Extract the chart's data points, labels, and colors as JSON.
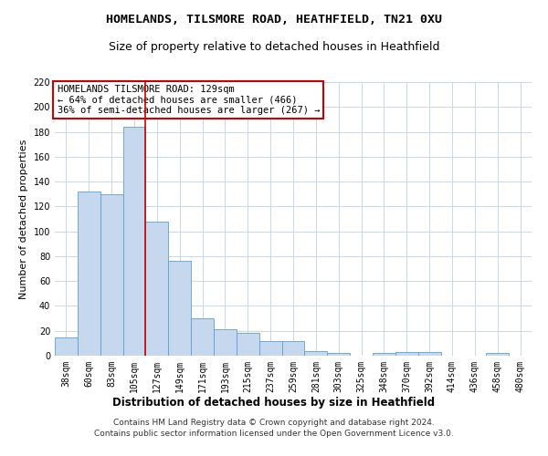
{
  "title1": "HOMELANDS, TILSMORE ROAD, HEATHFIELD, TN21 0XU",
  "title2": "Size of property relative to detached houses in Heathfield",
  "xlabel": "Distribution of detached houses by size in Heathfield",
  "ylabel": "Number of detached properties",
  "categories": [
    "38sqm",
    "60sqm",
    "83sqm",
    "105sqm",
    "127sqm",
    "149sqm",
    "171sqm",
    "193sqm",
    "215sqm",
    "237sqm",
    "259sqm",
    "281sqm",
    "303sqm",
    "325sqm",
    "348sqm",
    "370sqm",
    "392sqm",
    "414sqm",
    "436sqm",
    "458sqm",
    "480sqm"
  ],
  "values": [
    15,
    132,
    130,
    184,
    108,
    76,
    30,
    21,
    18,
    12,
    12,
    4,
    2,
    0,
    2,
    3,
    3,
    0,
    0,
    2,
    0
  ],
  "bar_color": "#c5d8ed",
  "bar_edge_color": "#5a9fd4",
  "highlight_index": 3,
  "highlight_line_color": "#cc0000",
  "annotation_text": "HOMELANDS TILSMORE ROAD: 129sqm\n← 64% of detached houses are smaller (466)\n36% of semi-detached houses are larger (267) →",
  "annotation_box_color": "#ffffff",
  "annotation_box_edge_color": "#cc0000",
  "ylim": [
    0,
    220
  ],
  "yticks": [
    0,
    20,
    40,
    60,
    80,
    100,
    120,
    140,
    160,
    180,
    200,
    220
  ],
  "footer1": "Contains HM Land Registry data © Crown copyright and database right 2024.",
  "footer2": "Contains public sector information licensed under the Open Government Licence v3.0.",
  "background_color": "#ffffff",
  "grid_color": "#c8d8e8",
  "title1_fontsize": 9.5,
  "title2_fontsize": 9,
  "ylabel_fontsize": 8,
  "xlabel_fontsize": 8.5,
  "tick_fontsize": 7,
  "annotation_fontsize": 7.5,
  "footer_fontsize": 6.5
}
